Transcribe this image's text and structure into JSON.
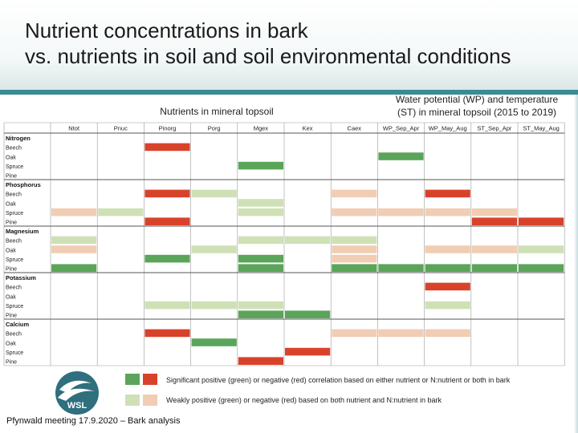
{
  "title": {
    "line1": "Nutrient concentrations in bark",
    "line2": "vs. nutrients in soil and soil environmental conditions"
  },
  "group_labels": {
    "soil": "Nutrients in mineral topsoil",
    "water_line1": "Water potential (WP) and temperature",
    "water_line2": "(ST) in mineral topsoil (2015 to 2019)"
  },
  "columns": [
    "Ntot",
    "Pnuc",
    "Pinorg",
    "Porg",
    "Mgex",
    "Kex",
    "Caex",
    "WP_Sep_Apr",
    "WP_May_Aug",
    "ST_Sep_Apr",
    "ST_May_Aug"
  ],
  "colors": {
    "strong_pos": "#5aa55a",
    "strong_neg": "#d9422a",
    "weak_pos": "#cfe0b6",
    "weak_neg": "#f1cdb4",
    "grid_line": "#9a9a9a",
    "header_rule": "#3c8a94"
  },
  "legend": {
    "strong": "Significant positive (green) or negative (red) correlation based on either nutrient or N:nutrient or both in bark",
    "weak": "Weakly positive (green) or negative (red) based on both nutrient and N:nutrient in bark"
  },
  "logo": "WSL",
  "footer": "Pfynwald meeting 17.9.2020 – Bark analysis",
  "groups": [
    {
      "name": "Nitrogen",
      "rows": [
        {
          "label": "Beech",
          "cells": [
            "",
            "",
            "R",
            "",
            "",
            "",
            "",
            "",
            "",
            "",
            ""
          ]
        },
        {
          "label": "Oak",
          "cells": [
            "",
            "",
            "",
            "",
            "",
            "",
            "",
            "G",
            "",
            "",
            ""
          ]
        },
        {
          "label": "Spruce",
          "cells": [
            "",
            "",
            "",
            "",
            "G",
            "",
            "",
            "",
            "",
            "",
            ""
          ]
        },
        {
          "label": "Pine",
          "cells": [
            "",
            "",
            "",
            "",
            "",
            "",
            "",
            "",
            "",
            "",
            ""
          ]
        }
      ]
    },
    {
      "name": "Phosphorus",
      "rows": [
        {
          "label": "Beech",
          "cells": [
            "",
            "",
            "R",
            "g",
            "",
            "",
            "r",
            "",
            "R",
            "",
            ""
          ]
        },
        {
          "label": "Oak",
          "cells": [
            "",
            "",
            "",
            "",
            "g",
            "",
            "",
            "",
            "",
            "",
            ""
          ]
        },
        {
          "label": "Spruce",
          "cells": [
            "r",
            "g",
            "",
            "",
            "g",
            "",
            "r",
            "r",
            "r",
            "r",
            ""
          ]
        },
        {
          "label": "Pine",
          "cells": [
            "",
            "",
            "R",
            "",
            "",
            "",
            "",
            "",
            "",
            "R",
            "R"
          ]
        }
      ]
    },
    {
      "name": "Magnesium",
      "rows": [
        {
          "label": "Beech",
          "cells": [
            "g",
            "",
            "",
            "",
            "g",
            "g",
            "g",
            "",
            "",
            "",
            ""
          ]
        },
        {
          "label": "Oak",
          "cells": [
            "r",
            "",
            "",
            "g",
            "",
            "",
            "r",
            "",
            "r",
            "r",
            "g"
          ]
        },
        {
          "label": "Spruce",
          "cells": [
            "",
            "",
            "G",
            "",
            "G",
            "",
            "r",
            "",
            "",
            "",
            ""
          ]
        },
        {
          "label": "Pine",
          "cells": [
            "G",
            "",
            "",
            "",
            "G",
            "",
            "G",
            "G",
            "G",
            "G",
            "G"
          ]
        }
      ]
    },
    {
      "name": "Potassium",
      "rows": [
        {
          "label": "Beech",
          "cells": [
            "",
            "",
            "",
            "",
            "",
            "",
            "",
            "",
            "R",
            "",
            ""
          ]
        },
        {
          "label": "Oak",
          "cells": [
            "",
            "",
            "",
            "",
            "",
            "",
            "",
            "",
            "",
            "",
            ""
          ]
        },
        {
          "label": "Spruce",
          "cells": [
            "",
            "",
            "g",
            "g",
            "g",
            "",
            "",
            "",
            "g",
            "",
            ""
          ]
        },
        {
          "label": "Pine",
          "cells": [
            "",
            "",
            "",
            "",
            "G",
            "G",
            "",
            "",
            "",
            "",
            ""
          ]
        }
      ]
    },
    {
      "name": "Calcium",
      "rows": [
        {
          "label": "Beech",
          "cells": [
            "",
            "",
            "R",
            "",
            "",
            "",
            "r",
            "r",
            "r",
            "",
            ""
          ]
        },
        {
          "label": "Oak",
          "cells": [
            "",
            "",
            "",
            "G",
            "",
            "",
            "",
            "",
            "",
            "",
            ""
          ]
        },
        {
          "label": "Spruce",
          "cells": [
            "",
            "",
            "",
            "",
            "",
            "R",
            "",
            "",
            "",
            "",
            ""
          ]
        },
        {
          "label": "Pine",
          "cells": [
            "",
            "",
            "",
            "",
            "R",
            "",
            "",
            "",
            "",
            "",
            ""
          ]
        }
      ]
    }
  ]
}
